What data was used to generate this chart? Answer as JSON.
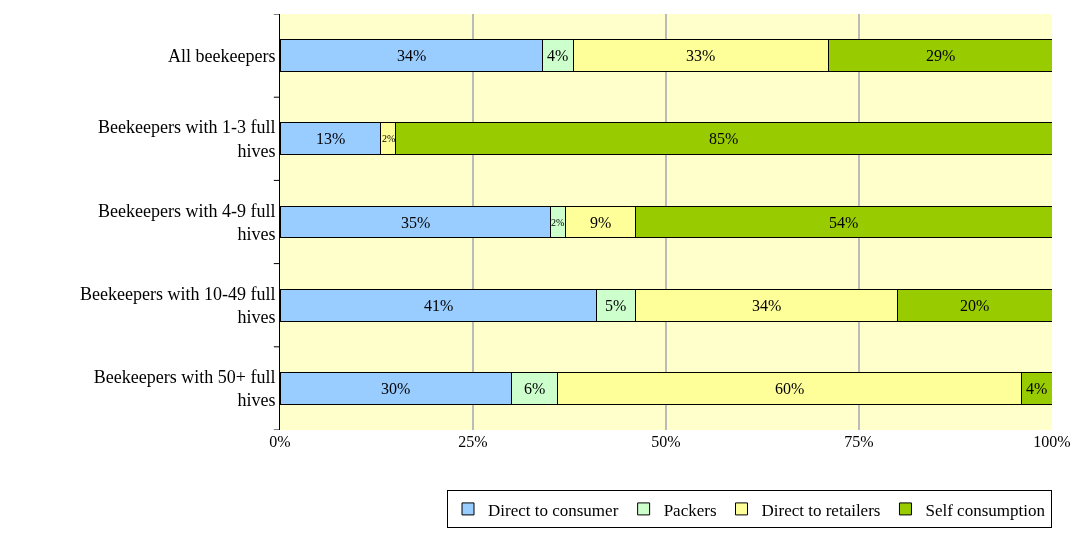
{
  "chart_data": {
    "type": "bar",
    "orientation": "horizontal",
    "stacked": true,
    "categories": [
      "All beekeepers",
      "Beekeepers with 1-3 full hives",
      "Beekeepers with 4-9 full hives",
      "Beekeepers with 10-49 full hives",
      "Beekeepers with 50+ full hives"
    ],
    "series": [
      {
        "name": "Direct to consumer",
        "color": "#99ccff",
        "values": [
          34,
          13,
          35,
          41,
          30
        ],
        "value_labels": [
          "34%",
          "13%",
          "35%",
          "41%",
          "30%"
        ]
      },
      {
        "name": "Packers",
        "color": "#ccffcc",
        "values": [
          4,
          null,
          2,
          5,
          6
        ],
        "value_labels": [
          "4%",
          null,
          "2%",
          "5%",
          "6%"
        ]
      },
      {
        "name": "Direct to retailers",
        "color": "#ffff99",
        "values": [
          33,
          2,
          9,
          34,
          60
        ],
        "value_labels": [
          "33%",
          "2%",
          "9%",
          "34%",
          "60%"
        ]
      },
      {
        "name": "Self consumption",
        "color": "#99cc00",
        "values": [
          29,
          85,
          54,
          20,
          4
        ],
        "value_labels": [
          "29%",
          "85%",
          "54%",
          "20%",
          "4%"
        ]
      }
    ],
    "xlim": [
      0,
      100
    ],
    "xticks": [
      {
        "value": 0,
        "label": "0%"
      },
      {
        "value": 25,
        "label": "25%"
      },
      {
        "value": 50,
        "label": "50%"
      },
      {
        "value": 75,
        "label": "75%"
      },
      {
        "value": 100,
        "label": "100%"
      }
    ],
    "grid": "x",
    "legend": "bottom"
  }
}
